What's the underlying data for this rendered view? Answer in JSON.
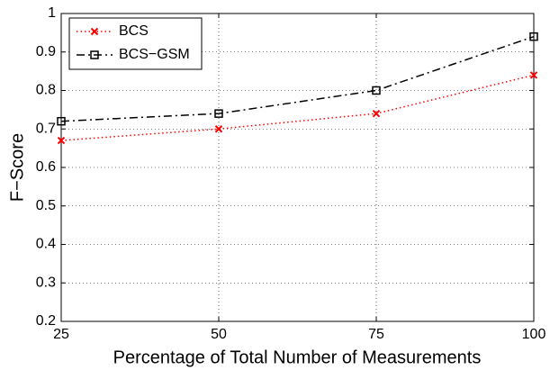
{
  "chart_data": {
    "type": "line",
    "x_label": "Percentage of Total Number of Measurements",
    "y_label": "F−Score",
    "x": [
      25,
      50,
      75,
      100
    ],
    "series": [
      {
        "name": "BCS",
        "color": "#ff0000",
        "dash": "dotted",
        "marker": "x",
        "values": [
          0.67,
          0.7,
          0.74,
          0.84
        ]
      },
      {
        "name": "BCS−GSM",
        "color": "#000000",
        "dash": "dashdot",
        "marker": "square",
        "values": [
          0.72,
          0.74,
          0.8,
          0.94
        ]
      }
    ],
    "xlim": [
      25,
      100
    ],
    "xticks": [
      25,
      50,
      75,
      100
    ],
    "ylim": [
      0.2,
      1
    ],
    "yticks": [
      0.2,
      0.3,
      0.4,
      0.5,
      0.6,
      0.7,
      0.8,
      0.9,
      1
    ],
    "grid": true,
    "legend": "upper left"
  }
}
